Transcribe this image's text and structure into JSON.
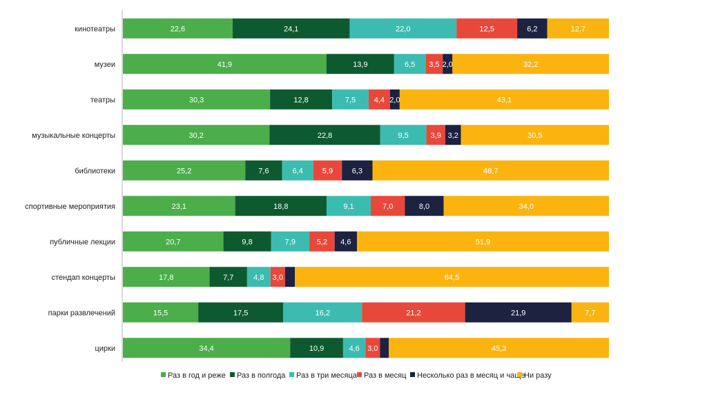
{
  "chart_data": {
    "type": "bar",
    "orientation": "horizontal",
    "stacked": true,
    "xlim": [
      0,
      100
    ],
    "grid": false,
    "legend_position": "bottom",
    "categories": [
      "кинотеатры",
      "музеи",
      "театры",
      "музыкальные концерты",
      "библиотеки",
      "спортивные мероприятия",
      "публичные лекции",
      "стендап концерты",
      "парки развлечений",
      "цирки"
    ],
    "series": [
      {
        "name": "Раз в год и реже",
        "color": "#4BAE4A",
        "label_color": "#ffffff",
        "values": [
          22.6,
          41.9,
          30.3,
          30.2,
          25.2,
          23.1,
          20.7,
          17.8,
          15.5,
          34.4
        ],
        "labels": [
          "22,6",
          "41,9",
          "30,3",
          "30,2",
          "25,2",
          "23,1",
          "20,7",
          "17,8",
          "15,5",
          "34,4"
        ]
      },
      {
        "name": "Раз в полгода",
        "color": "#0E5A30",
        "label_color": "#ffffff",
        "values": [
          24.1,
          13.9,
          12.8,
          22.8,
          7.6,
          18.8,
          9.8,
          7.7,
          17.5,
          10.9
        ],
        "labels": [
          "24,1",
          "13,9",
          "12,8",
          "22,8",
          "7,6",
          "18,8",
          "9,8",
          "7,7",
          "17,5",
          "10,9"
        ]
      },
      {
        "name": "Раз в три месяца",
        "color": "#3CBCB0",
        "label_color": "#ffffff",
        "values": [
          22.0,
          6.5,
          7.5,
          9.5,
          6.4,
          9.1,
          7.9,
          4.8,
          16.2,
          4.6
        ],
        "labels": [
          "22,0",
          "6,5",
          "7,5",
          "9,5",
          "6,4",
          "9,1",
          "7,9",
          "4,8",
          "16,2",
          "4,6"
        ]
      },
      {
        "name": "Раз в месяц",
        "color": "#E8483A",
        "label_color": "#ffffff",
        "values": [
          12.5,
          3.5,
          4.4,
          3.9,
          5.9,
          7.0,
          5.2,
          3.0,
          21.2,
          3.0
        ],
        "labels": [
          "12,5",
          "3,5",
          "4,4",
          "3,9",
          "5,9",
          "7,0",
          "5,2",
          "3,0",
          "21,2",
          "3,0"
        ]
      },
      {
        "name": "Несколько раз в месяц и чаще",
        "color": "#1C2240",
        "label_color": "#ffffff",
        "values": [
          6.2,
          2.0,
          2.0,
          3.2,
          6.3,
          8.0,
          4.6,
          2.0,
          21.9,
          1.8
        ],
        "labels": [
          "6,2",
          "2,0",
          "2,0",
          "3,2",
          "6,3",
          "8,0",
          "4,6",
          "",
          "21,9",
          ""
        ]
      },
      {
        "name": "Ни разу",
        "color": "#FBB40F",
        "label_color": "#ffffff",
        "values": [
          12.7,
          32.2,
          43.1,
          30.5,
          48.7,
          34.0,
          51.9,
          64.5,
          7.7,
          45.3
        ],
        "labels": [
          "12,7",
          "32,2",
          "43,1",
          "30,5",
          "48,7",
          "34,0",
          "51,9",
          "64,5",
          "7,7",
          "45,3"
        ]
      }
    ]
  }
}
